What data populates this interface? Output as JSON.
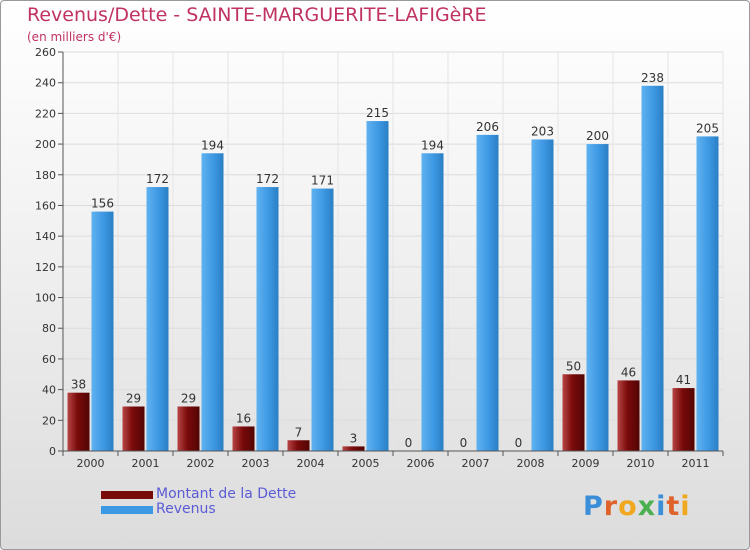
{
  "header": {
    "title": "Revenus/Dette - SAINTE-MARGUERITE-LAFIGèRE",
    "subtitle": "(en milliers d'€)"
  },
  "legend": {
    "items": [
      {
        "label": "Montant de la Dette",
        "color": "#7a0b0b"
      },
      {
        "label": "Revenus",
        "color": "#3d98e3"
      }
    ]
  },
  "logo": {
    "text": "Proxiti"
  },
  "chart_data": {
    "type": "bar",
    "title": "Revenus/Dette - SAINTE-MARGUERITE-LAFIGèRE",
    "ylabel": "(en milliers d'€)",
    "categories": [
      "2000",
      "2001",
      "2002",
      "2003",
      "2004",
      "2005",
      "2006",
      "2007",
      "2008",
      "2009",
      "2010",
      "2011"
    ],
    "series": [
      {
        "name": "Montant de la Dette",
        "color": "#7a0b0b",
        "values": [
          38,
          29,
          29,
          16,
          7,
          3,
          0,
          0,
          0,
          50,
          46,
          41
        ]
      },
      {
        "name": "Revenus",
        "color": "#3d98e3",
        "values": [
          156,
          172,
          194,
          172,
          171,
          215,
          194,
          206,
          203,
          200,
          238,
          205
        ]
      }
    ],
    "ylim": [
      0,
      260
    ],
    "yticks": [
      0,
      20,
      40,
      60,
      80,
      100,
      120,
      140,
      160,
      180,
      200,
      220,
      240,
      260
    ],
    "grid": true,
    "legend": "bottom-left"
  }
}
